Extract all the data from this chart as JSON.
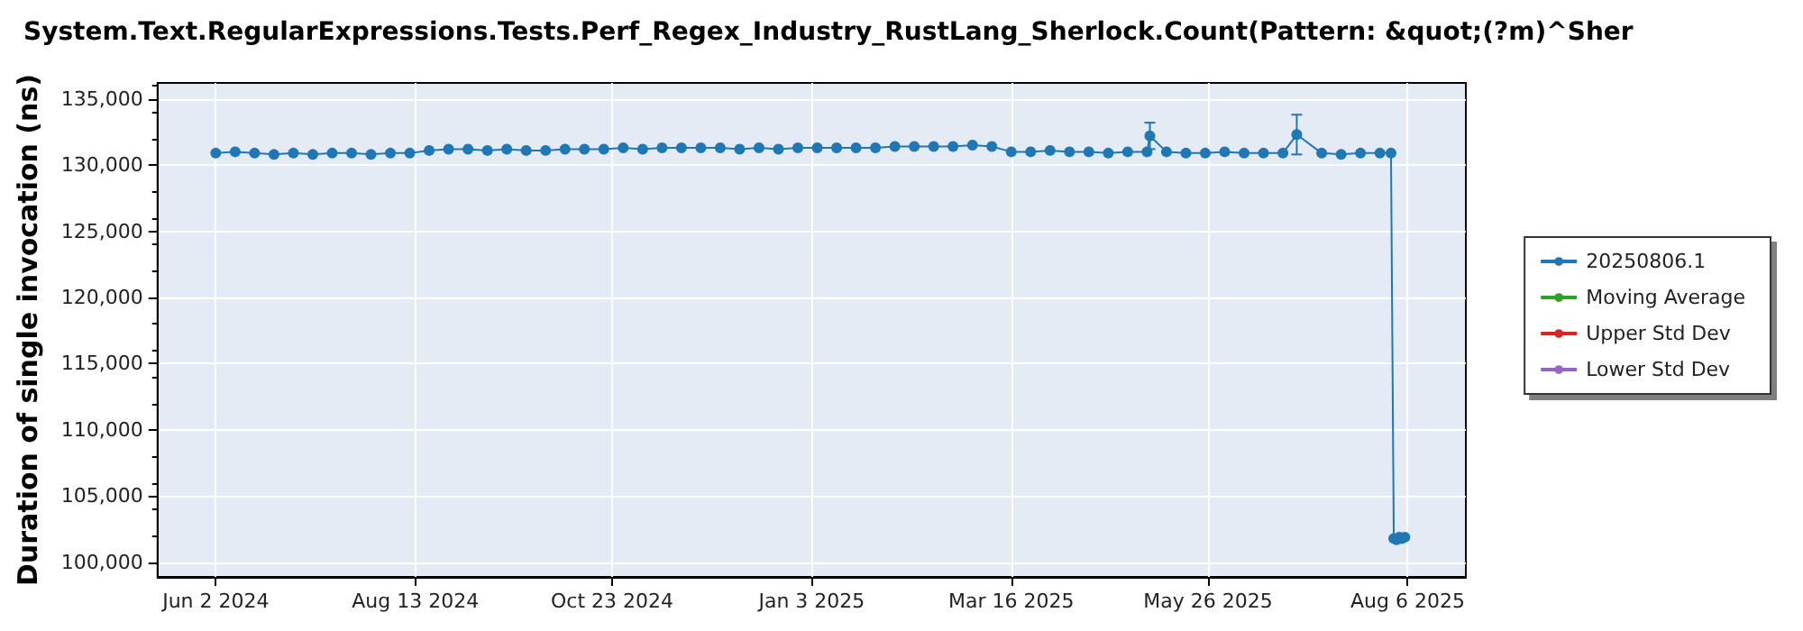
{
  "chart_data": {
    "type": "line",
    "title": "System.Text.RegularExpressions.Tests.Perf_Regex_Industry_RustLang_Sherlock.Count(Pattern: &quot;(?m)^Sher",
    "ylabel": "Duration of single invocation (ns)",
    "xlim": [
      "2024-05-12",
      "2025-08-27"
    ],
    "xticks": [
      {
        "value": "2024-06-02",
        "label": "Jun 2 2024"
      },
      {
        "value": "2024-08-13",
        "label": "Aug 13 2024"
      },
      {
        "value": "2024-10-23",
        "label": "Oct 23 2024"
      },
      {
        "value": "2025-01-03",
        "label": "Jan 3 2025"
      },
      {
        "value": "2025-03-16",
        "label": "Mar 16 2025"
      },
      {
        "value": "2025-05-26",
        "label": "May 26 2025"
      },
      {
        "value": "2025-08-06",
        "label": "Aug 6 2025"
      }
    ],
    "ylim": [
      98900,
      136200
    ],
    "yticks": [
      {
        "value": 100000,
        "label": "100,000"
      },
      {
        "value": 105000,
        "label": "105,000"
      },
      {
        "value": 110000,
        "label": "110,000"
      },
      {
        "value": 115000,
        "label": "115,000"
      },
      {
        "value": 120000,
        "label": "120,000"
      },
      {
        "value": 125000,
        "label": "125,000"
      },
      {
        "value": 130000,
        "label": "130,000"
      },
      {
        "value": 135000,
        "label": "135,000"
      }
    ],
    "grid": true,
    "legend": "right",
    "marker": "circle",
    "series": [
      {
        "name": "20250806.1",
        "color": "#1f77b4",
        "x": [
          "2024-06-02",
          "2024-06-09",
          "2024-06-16",
          "2024-06-23",
          "2024-06-30",
          "2024-07-07",
          "2024-07-14",
          "2024-07-21",
          "2024-07-28",
          "2024-08-04",
          "2024-08-11",
          "2024-08-18",
          "2024-08-25",
          "2024-09-01",
          "2024-09-08",
          "2024-09-15",
          "2024-09-22",
          "2024-09-29",
          "2024-10-06",
          "2024-10-13",
          "2024-10-20",
          "2024-10-27",
          "2024-11-03",
          "2024-11-10",
          "2024-11-17",
          "2024-11-24",
          "2024-12-01",
          "2024-12-08",
          "2024-12-15",
          "2024-12-22",
          "2024-12-29",
          "2025-01-05",
          "2025-01-12",
          "2025-01-19",
          "2025-01-26",
          "2025-02-02",
          "2025-02-09",
          "2025-02-16",
          "2025-02-23",
          "2025-03-02",
          "2025-03-09",
          "2025-03-16",
          "2025-03-23",
          "2025-03-30",
          "2025-04-06",
          "2025-04-13",
          "2025-04-20",
          "2025-04-27",
          "2025-05-04",
          "2025-05-05",
          "2025-05-11",
          "2025-05-18",
          "2025-05-25",
          "2025-06-01",
          "2025-06-08",
          "2025-06-15",
          "2025-06-22",
          "2025-06-27",
          "2025-07-06",
          "2025-07-13",
          "2025-07-20",
          "2025-07-27",
          "2025-07-31",
          "2025-08-01",
          "2025-08-02",
          "2025-08-03",
          "2025-08-04",
          "2025-08-05"
        ],
        "values": [
          130900,
          131000,
          130900,
          130800,
          130900,
          130800,
          130900,
          130900,
          130800,
          130900,
          130900,
          131100,
          131200,
          131200,
          131100,
          131200,
          131100,
          131100,
          131200,
          131200,
          131200,
          131300,
          131200,
          131300,
          131300,
          131300,
          131300,
          131200,
          131300,
          131200,
          131300,
          131300,
          131300,
          131300,
          131300,
          131400,
          131400,
          131400,
          131400,
          131500,
          131400,
          131000,
          131000,
          131100,
          131000,
          131000,
          130900,
          131000,
          131000,
          132200,
          131000,
          130900,
          130900,
          131000,
          130900,
          130900,
          130900,
          132300,
          130900,
          130800,
          130900,
          130900,
          130900,
          101800,
          101700,
          101900,
          101800,
          101900
        ],
        "errors": [
          null,
          null,
          null,
          null,
          null,
          null,
          null,
          null,
          null,
          null,
          null,
          null,
          null,
          null,
          null,
          null,
          null,
          null,
          null,
          null,
          null,
          null,
          null,
          null,
          null,
          null,
          null,
          null,
          null,
          null,
          null,
          null,
          null,
          null,
          null,
          null,
          null,
          null,
          null,
          null,
          null,
          null,
          null,
          null,
          null,
          null,
          null,
          null,
          null,
          1000,
          null,
          null,
          null,
          null,
          null,
          null,
          null,
          1500,
          null,
          null,
          null,
          null,
          null,
          null,
          null,
          null,
          null,
          null
        ]
      },
      {
        "name": "Moving Average",
        "color": "#2ca02c"
      },
      {
        "name": "Upper Std Dev",
        "color": "#d62728"
      },
      {
        "name": "Lower Std Dev",
        "color": "#9467bd"
      }
    ]
  }
}
